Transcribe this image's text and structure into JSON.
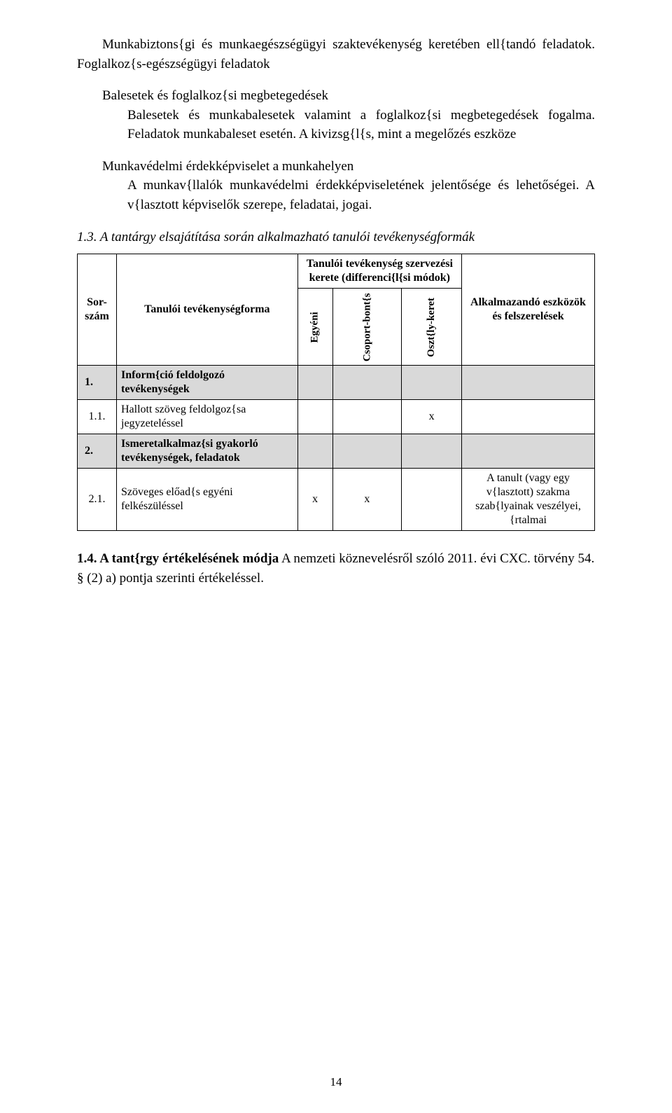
{
  "intro": {
    "p1": "Munkabiztons{gi és munkaegészségügyi szaktevékenység keretében ell{tandó feladatok. Foglalkoz{s-egészségügyi feladatok",
    "p2_head": "Balesetek és foglalkoz{si megbetegedések",
    "p2_body": "Balesetek és munkabalesetek valamint a foglalkoz{si megbetegedések fogalma. Feladatok munkabaleset esetén. A kivizsg{l{s, mint a megelőzés eszköze",
    "p3_head": "Munkavédelmi érdekképviselet a munkahelyen",
    "p3_body": "A munkav{llalók munkavédelmi érdekképviseletének jelentősége és lehetőségei. A v{lasztott képviselők szerepe, feladatai, jogai."
  },
  "section13": "1.3. A tantárgy elsajátítása során alkalmazható tanulói tevékenységformák",
  "table": {
    "headers": {
      "sor": "Sor-szám",
      "forma": "Tanulói tevékenységforma",
      "diff": "Tanulói tevékenység szervezési kerete (differenci{l{si módok)",
      "alk": "Alkalmazandó eszközök és felszerelések",
      "egyeni": "Egyéni",
      "csoport": "Csoport-bont{s",
      "osztaly": "Oszt{ly-keret"
    },
    "rows": [
      {
        "num": "1.",
        "forma": "Inform{ció feldolgozó tevékenységek",
        "egyeni": "",
        "csoport": "",
        "osztaly": "",
        "alk": "",
        "gray": true,
        "bold": true
      },
      {
        "num": "1.1.",
        "forma": "Hallott szöveg feldolgoz{sa jegyzeteléssel",
        "egyeni": "",
        "csoport": "",
        "osztaly": "x",
        "alk": "",
        "gray": false,
        "bold": false
      },
      {
        "num": "2.",
        "forma": "Ismeretalkalmaz{si gyakorló tevékenységek, feladatok",
        "egyeni": "",
        "csoport": "",
        "osztaly": "",
        "alk": "",
        "gray": true,
        "bold": true
      },
      {
        "num": "2.1.",
        "forma": "Szöveges előad{s egyéni felkészüléssel",
        "egyeni": "x",
        "csoport": "x",
        "osztaly": "",
        "alk": "A tanult (vagy egy v{lasztott) szakma szab{lyainak veszélyei, {rtalmai",
        "gray": false,
        "bold": false
      }
    ]
  },
  "section14": {
    "title": "1.4. A tant{rgy értékelésének módja",
    "body": "A nemzeti köznevelésről szóló 2011. évi CXC. törvény 54. § (2) a) pontja szerinti értékeléssel."
  },
  "page_number": "14"
}
